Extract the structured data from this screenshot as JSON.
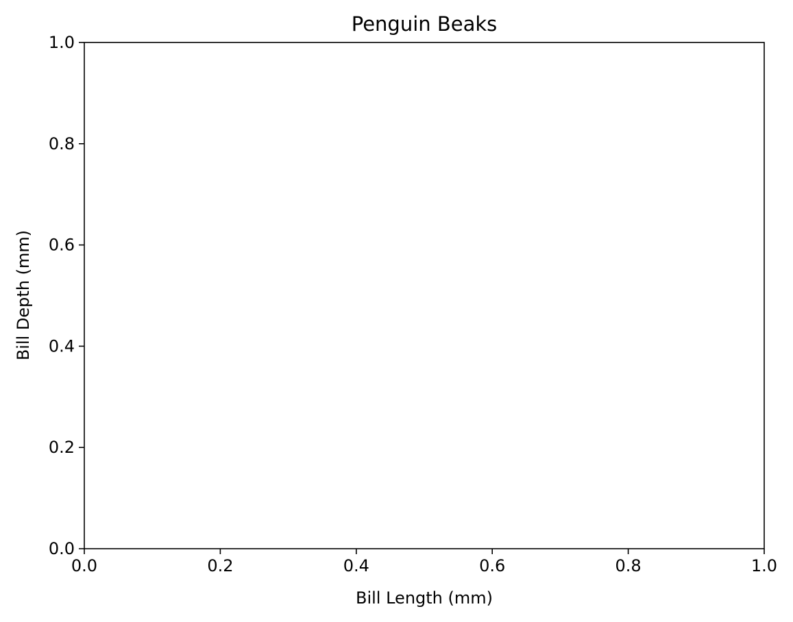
{
  "chart_data": {
    "type": "scatter",
    "title": "Penguin Beaks",
    "xlabel": "Bill Length (mm)",
    "ylabel": "Bill Depth (mm)",
    "xlim": [
      0.0,
      1.0
    ],
    "ylim": [
      0.0,
      1.0
    ],
    "xticks": [
      "0.0",
      "0.2",
      "0.4",
      "0.6",
      "0.8",
      "1.0"
    ],
    "yticks": [
      "0.0",
      "0.2",
      "0.4",
      "0.6",
      "0.8",
      "1.0"
    ],
    "grid": false,
    "series": []
  },
  "colors": {
    "background": "#ffffff",
    "axes": "#000000",
    "text": "#000000"
  }
}
